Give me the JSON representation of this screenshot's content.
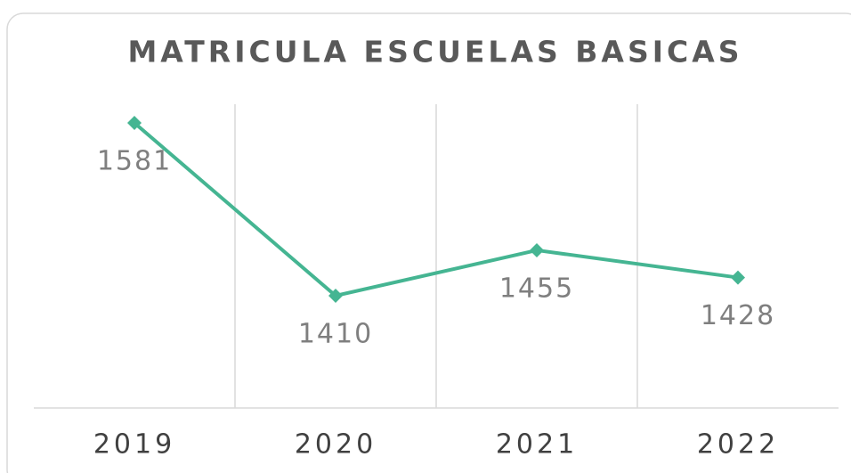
{
  "chart_data": {
    "type": "line",
    "title": "MATRICULA ESCUELAS BASICAS",
    "categories": [
      "2019",
      "2020",
      "2021",
      "2022"
    ],
    "series": [
      {
        "name": "Matricula",
        "color": "#45b592",
        "values": [
          1581,
          1410,
          1455,
          1428
        ]
      }
    ],
    "grid": true,
    "legend": false
  }
}
